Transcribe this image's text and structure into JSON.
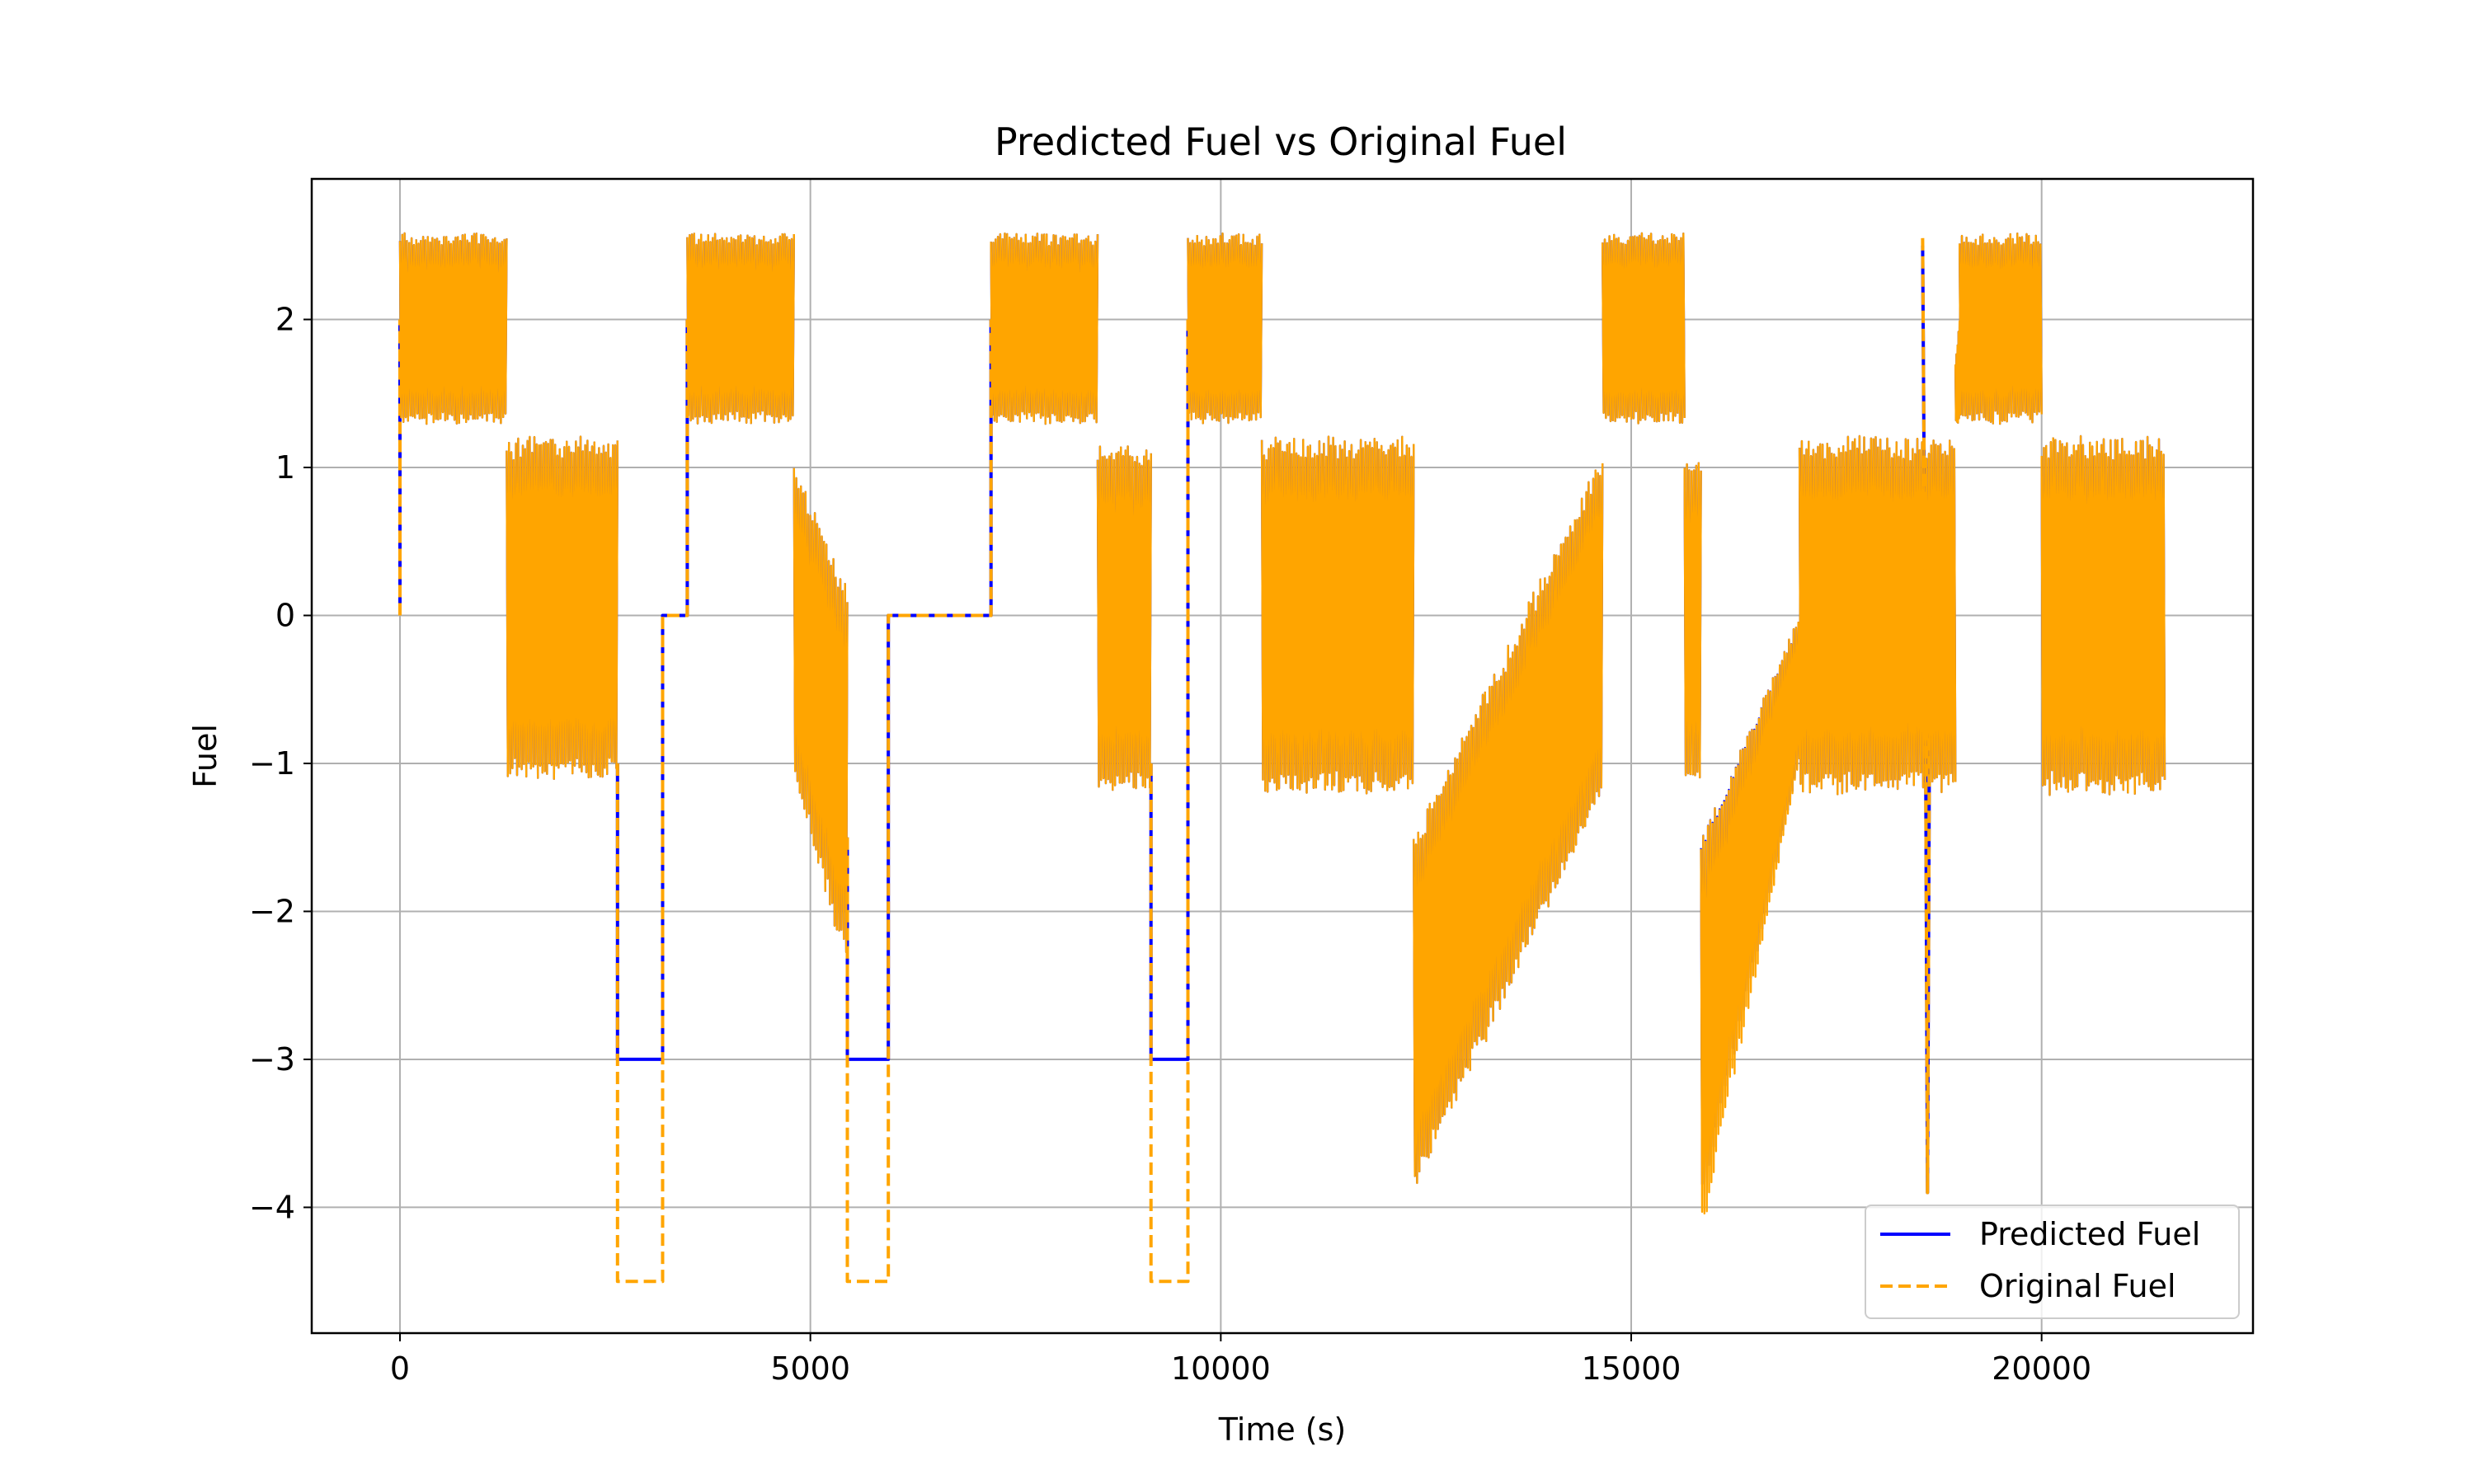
{
  "chart_data": {
    "type": "line",
    "title": "Predicted Fuel vs Original Fuel",
    "xlabel": "Time (s)",
    "ylabel": "Fuel",
    "xlim": [
      -1075,
      22575
    ],
    "ylim": [
      -4.85,
      2.95
    ],
    "x_ticks": [
      0,
      5000,
      10000,
      15000,
      20000
    ],
    "x_tick_labels": [
      "0",
      "5000",
      "10000",
      "15000",
      "20000"
    ],
    "y_ticks": [
      2,
      1,
      0,
      -1,
      -2,
      -3,
      -4
    ],
    "y_tick_labels": [
      "2",
      "1",
      "0",
      "−1",
      "−2",
      "−3",
      "−4"
    ],
    "grid": true,
    "legend_position": "lower-right",
    "series": [
      {
        "name": "Predicted Fuel",
        "color": "#0000ff",
        "style": "solid",
        "segments": [
          {
            "kind": "line",
            "points": [
              [
                0,
                0
              ],
              [
                0,
                2.0
              ]
            ]
          },
          {
            "kind": "band",
            "x": [
              0,
              1300
            ],
            "low": [
              1.3,
              1.3
            ],
            "high": [
              2.58,
              2.58
            ]
          },
          {
            "kind": "band",
            "x": [
              1300,
              2650
            ],
            "low": [
              -1.1,
              -1.1
            ],
            "high": [
              1.2,
              1.2
            ]
          },
          {
            "kind": "line",
            "points": [
              [
                2650,
                -1.0
              ],
              [
                2650,
                -3.0
              ],
              [
                3200,
                -3.0
              ],
              [
                3200,
                0
              ],
              [
                3500,
                0
              ],
              [
                3500,
                2.0
              ]
            ]
          },
          {
            "kind": "band",
            "x": [
              3500,
              4800
            ],
            "low": [
              1.3,
              1.3
            ],
            "high": [
              2.58,
              2.58
            ]
          },
          {
            "kind": "band",
            "x": [
              4800,
              5450
            ],
            "low": [
              -1.1,
              -2.4
            ],
            "high": [
              1.0,
              0.2
            ]
          },
          {
            "kind": "line",
            "points": [
              [
                5450,
                -1.5
              ],
              [
                5450,
                -3.0
              ],
              [
                5950,
                -3.0
              ],
              [
                5950,
                0
              ],
              [
                7200,
                0
              ],
              [
                7200,
                2.0
              ]
            ]
          },
          {
            "kind": "band",
            "x": [
              7200,
              8500
            ],
            "low": [
              1.3,
              1.3
            ],
            "high": [
              2.58,
              2.58
            ]
          },
          {
            "kind": "band",
            "x": [
              8500,
              9150
            ],
            "low": [
              -1.2,
              -1.2
            ],
            "high": [
              1.15,
              1.15
            ]
          },
          {
            "kind": "line",
            "points": [
              [
                9150,
                -1.0
              ],
              [
                9150,
                -3.0
              ],
              [
                9600,
                -3.0
              ],
              [
                9600,
                2.0
              ]
            ]
          },
          {
            "kind": "band",
            "x": [
              9600,
              10500
            ],
            "low": [
              1.3,
              1.3
            ],
            "high": [
              2.58,
              2.58
            ]
          },
          {
            "kind": "band",
            "x": [
              10500,
              12350
            ],
            "low": [
              -1.2,
              -1.2
            ],
            "high": [
              1.2,
              1.2
            ]
          },
          {
            "kind": "band",
            "x": [
              12350,
              14650
            ],
            "low": [
              -3.9,
              -1.2
            ],
            "high": [
              -1.5,
              1.1
            ]
          },
          {
            "kind": "band",
            "x": [
              14650,
              15650
            ],
            "low": [
              1.3,
              1.3
            ],
            "high": [
              2.58,
              2.58
            ]
          },
          {
            "kind": "band",
            "x": [
              15650,
              15850
            ],
            "low": [
              -1.1,
              -1.1
            ],
            "high": [
              1.1,
              1.1
            ]
          },
          {
            "kind": "band",
            "x": [
              15850,
              17050
            ],
            "low": [
              -4.0,
              -1.0
            ],
            "high": [
              -1.5,
              0.0
            ]
          },
          {
            "kind": "band",
            "x": [
              17050,
              18950
            ],
            "low": [
              -1.2,
              -1.2
            ],
            "high": [
              1.2,
              1.2
            ]
          },
          {
            "kind": "line",
            "points": [
              [
                18550,
                2.5
              ],
              [
                18580,
                0.0
              ],
              [
                18610,
                -3.9
              ],
              [
                18640,
                0.0
              ]
            ]
          },
          {
            "kind": "band",
            "x": [
              18950,
              19000
            ],
            "low": [
              1.3,
              1.3
            ],
            "high": [
              1.7,
              2.0
            ]
          },
          {
            "kind": "band",
            "x": [
              19000,
              20000
            ],
            "low": [
              1.3,
              1.3
            ],
            "high": [
              2.58,
              2.58
            ]
          },
          {
            "kind": "band",
            "x": [
              20000,
              21500
            ],
            "low": [
              -1.2,
              -1.2
            ],
            "high": [
              1.2,
              1.2
            ]
          }
        ]
      },
      {
        "name": "Original Fuel",
        "color": "#ffa500",
        "style": "dashed",
        "segments": [
          {
            "kind": "line",
            "points": [
              [
                0,
                0
              ],
              [
                0,
                2.0
              ]
            ]
          },
          {
            "kind": "band",
            "x": [
              0,
              1300
            ],
            "low": [
              1.3,
              1.3
            ],
            "high": [
              2.58,
              2.58
            ]
          },
          {
            "kind": "band",
            "x": [
              1300,
              2650
            ],
            "low": [
              -1.1,
              -1.1
            ],
            "high": [
              1.2,
              1.2
            ]
          },
          {
            "kind": "line",
            "points": [
              [
                2650,
                -1.0
              ],
              [
                2650,
                -4.5
              ],
              [
                3200,
                -4.5
              ],
              [
                3200,
                0
              ],
              [
                3500,
                0
              ],
              [
                3500,
                2.0
              ]
            ]
          },
          {
            "kind": "band",
            "x": [
              3500,
              4800
            ],
            "low": [
              1.3,
              1.3
            ],
            "high": [
              2.58,
              2.58
            ]
          },
          {
            "kind": "band",
            "x": [
              4800,
              5450
            ],
            "low": [
              -1.1,
              -2.4
            ],
            "high": [
              1.0,
              0.2
            ]
          },
          {
            "kind": "line",
            "points": [
              [
                5450,
                -1.5
              ],
              [
                5450,
                -4.5
              ],
              [
                5950,
                -4.5
              ],
              [
                5950,
                0
              ],
              [
                7200,
                0
              ],
              [
                7200,
                2.0
              ]
            ]
          },
          {
            "kind": "band",
            "x": [
              7200,
              8500
            ],
            "low": [
              1.3,
              1.3
            ],
            "high": [
              2.58,
              2.58
            ]
          },
          {
            "kind": "band",
            "x": [
              8500,
              9150
            ],
            "low": [
              -1.2,
              -1.2
            ],
            "high": [
              1.15,
              1.15
            ]
          },
          {
            "kind": "line",
            "points": [
              [
                9150,
                -1.0
              ],
              [
                9150,
                -4.5
              ],
              [
                9600,
                -4.5
              ],
              [
                9600,
                2.0
              ]
            ]
          },
          {
            "kind": "band",
            "x": [
              9600,
              10500
            ],
            "low": [
              1.3,
              1.3
            ],
            "high": [
              2.58,
              2.58
            ]
          },
          {
            "kind": "band",
            "x": [
              10500,
              12350
            ],
            "low": [
              -1.2,
              -1.2
            ],
            "high": [
              1.2,
              1.2
            ]
          },
          {
            "kind": "band",
            "x": [
              12350,
              14650
            ],
            "low": [
              -3.9,
              -1.2
            ],
            "high": [
              -1.5,
              1.1
            ]
          },
          {
            "kind": "band",
            "x": [
              14650,
              15650
            ],
            "low": [
              1.3,
              1.3
            ],
            "high": [
              2.58,
              2.58
            ]
          },
          {
            "kind": "band",
            "x": [
              15650,
              15850
            ],
            "low": [
              -1.1,
              -1.1
            ],
            "high": [
              1.1,
              1.1
            ]
          },
          {
            "kind": "band",
            "x": [
              15850,
              17050
            ],
            "low": [
              -4.2,
              -1.0
            ],
            "high": [
              -1.5,
              0.0
            ]
          },
          {
            "kind": "band",
            "x": [
              17050,
              18950
            ],
            "low": [
              -1.2,
              -1.2
            ],
            "high": [
              1.2,
              1.2
            ]
          },
          {
            "kind": "line",
            "points": [
              [
                18550,
                2.55
              ],
              [
                18580,
                0.0
              ],
              [
                18610,
                -3.9
              ],
              [
                18640,
                0.0
              ]
            ]
          },
          {
            "kind": "band",
            "x": [
              18950,
              19000
            ],
            "low": [
              1.3,
              1.3
            ],
            "high": [
              1.7,
              2.0
            ]
          },
          {
            "kind": "band",
            "x": [
              19000,
              20000
            ],
            "low": [
              1.3,
              1.3
            ],
            "high": [
              2.58,
              2.58
            ]
          },
          {
            "kind": "band",
            "x": [
              20000,
              21500
            ],
            "low": [
              -1.2,
              -1.2
            ],
            "high": [
              1.2,
              1.2
            ]
          }
        ]
      }
    ]
  }
}
